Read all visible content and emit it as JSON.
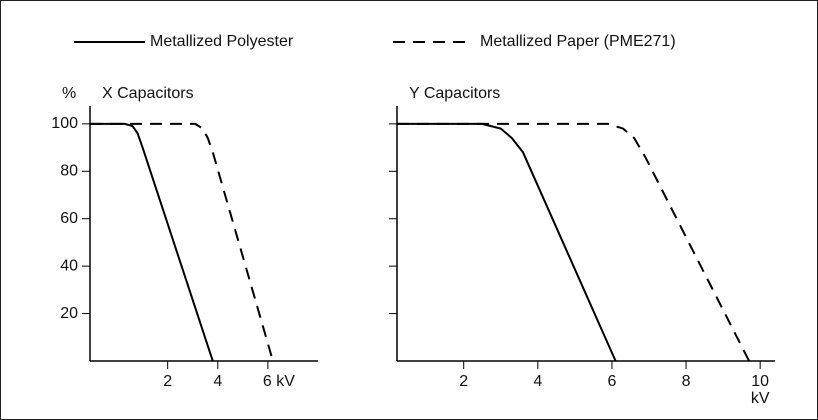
{
  "chart_data": [
    {
      "type": "line",
      "title": "X Capacitors",
      "ylabel": "%",
      "xlim": [
        -1.1,
        8
      ],
      "ylim": [
        0,
        105
      ],
      "xticks": [
        2,
        4,
        {
          "value": 6,
          "label": "6 kV"
        }
      ],
      "yticks": [
        20,
        40,
        60,
        80,
        100
      ],
      "show_ytick_labels": true,
      "series": [
        {
          "name": "Metallized Polyester",
          "color": "#000000",
          "dash": false,
          "x": [
            -1.1,
            0.3,
            0.6,
            0.8,
            1.0,
            3.8
          ],
          "values": [
            100,
            100,
            99,
            96,
            90,
            0
          ]
        },
        {
          "name": "Metallized Paper (PME271)",
          "color": "#000000",
          "dash": true,
          "x": [
            -1.1,
            3.1,
            3.4,
            3.6,
            3.8,
            6.2
          ],
          "values": [
            100,
            100,
            98,
            94,
            88,
            0
          ]
        }
      ]
    },
    {
      "type": "line",
      "title": "Y Capacitors",
      "xlabel": "kV",
      "xlim": [
        0.2,
        10.4
      ],
      "ylim": [
        0,
        105
      ],
      "xticks": [
        2,
        4,
        6,
        8,
        10
      ],
      "yticks": [
        20,
        40,
        60,
        80,
        100
      ],
      "show_ytick_labels": false,
      "series": [
        {
          "color": "#000000",
          "dash": false,
          "x": [
            0.2,
            2.5,
            3.0,
            3.3,
            3.6,
            6.1
          ],
          "values": [
            100,
            100,
            98,
            94,
            88,
            0
          ]
        },
        {
          "color": "#000000",
          "dash": true,
          "x": [
            0.2,
            5.9,
            6.3,
            6.6,
            6.9,
            9.7
          ],
          "values": [
            100,
            100,
            98,
            94,
            86,
            0
          ]
        }
      ]
    }
  ]
}
